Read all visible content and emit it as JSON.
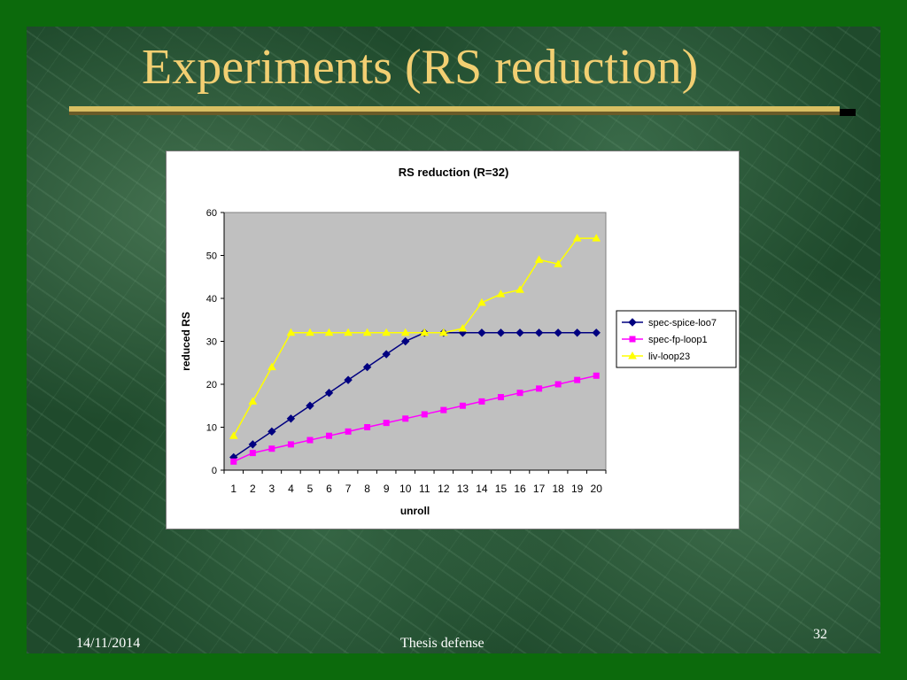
{
  "slide": {
    "title": "Experiments (RS reduction)",
    "footer_date": "14/11/2014",
    "footer_center": "Thesis defense",
    "page_number": "32"
  },
  "colors": {
    "background": "#1f4a2c",
    "title": "#f2cf72",
    "plot_area": "#c0c0c0"
  },
  "chart_data": {
    "type": "line",
    "title": "RS reduction (R=32)",
    "xlabel": "unroll",
    "ylabel": "reduced RS",
    "categories": [
      "1",
      "2",
      "3",
      "4",
      "5",
      "6",
      "7",
      "8",
      "9",
      "10",
      "11",
      "12",
      "13",
      "14",
      "15",
      "16",
      "17",
      "18",
      "19",
      "20"
    ],
    "ylim": [
      0,
      60
    ],
    "yticks": [
      0,
      10,
      20,
      30,
      40,
      50,
      60
    ],
    "grid": false,
    "legend_position": "right",
    "series": [
      {
        "name": "spec-spice-loo7",
        "color": "#000080",
        "marker": "diamond",
        "values": [
          3,
          6,
          9,
          12,
          15,
          18,
          21,
          24,
          27,
          30,
          32,
          32,
          32,
          32,
          32,
          32,
          32,
          32,
          32,
          32
        ]
      },
      {
        "name": "spec-fp-loop1",
        "color": "#ff00ff",
        "marker": "square",
        "values": [
          2,
          4,
          5,
          6,
          7,
          8,
          9,
          10,
          11,
          12,
          13,
          14,
          15,
          16,
          17,
          18,
          19,
          20,
          21,
          22
        ]
      },
      {
        "name": "liv-loop23",
        "color": "#ffff00",
        "marker": "triangle",
        "values": [
          8,
          16,
          24,
          32,
          32,
          32,
          32,
          32,
          32,
          32,
          32,
          32,
          33,
          39,
          41,
          42,
          49,
          48,
          54,
          54
        ]
      }
    ]
  }
}
